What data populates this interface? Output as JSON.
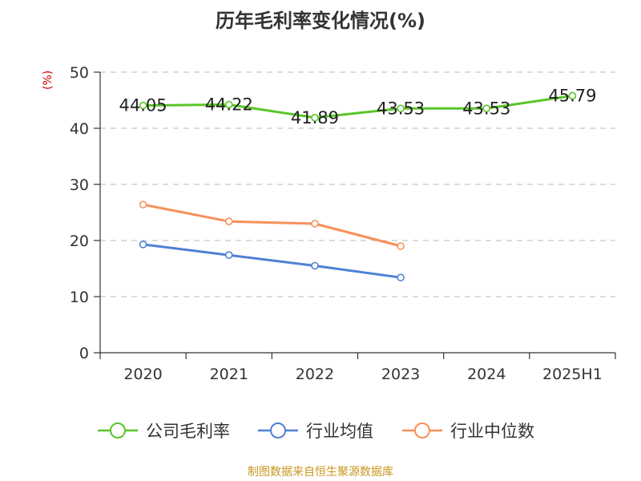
{
  "chart_data": {
    "type": "line",
    "title": "历年毛利率变化情况(%)",
    "unit_label": "(%)",
    "categories": [
      "2020",
      "2021",
      "2022",
      "2023",
      "2024",
      "2025H1"
    ],
    "ylim": [
      0,
      50
    ],
    "yticks": [
      "0",
      "10",
      "20",
      "30",
      "40",
      "50"
    ],
    "grid": true,
    "legend_position": "bottom",
    "series": [
      {
        "name": "公司毛利率",
        "color": "#5ac52a",
        "values": [
          44.05,
          44.22,
          41.89,
          43.53,
          43.53,
          45.79
        ],
        "labels": [
          "44.05",
          "44.22",
          "41.89",
          "43.53",
          "43.53",
          "45.79"
        ]
      },
      {
        "name": "行业均值",
        "color": "#4f81d6",
        "values": [
          19.3,
          17.4,
          15.5,
          13.4,
          null,
          null
        ]
      },
      {
        "name": "行业中位数",
        "color": "#f7905a",
        "values": [
          26.4,
          23.4,
          23.0,
          19.0,
          null,
          null
        ]
      }
    ]
  },
  "source_text": "制图数据来自恒生聚源数据库"
}
